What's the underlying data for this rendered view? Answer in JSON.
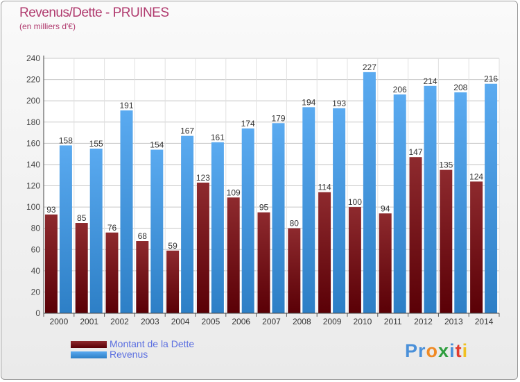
{
  "chart_data": {
    "type": "bar",
    "title": "Revenus/Dette - PRUINES",
    "subtitle": "(en milliers d'€)",
    "categories": [
      "2000",
      "2001",
      "2002",
      "2003",
      "2004",
      "2005",
      "2006",
      "2007",
      "2008",
      "2009",
      "2010",
      "2011",
      "2012",
      "2013",
      "2014"
    ],
    "series": [
      {
        "name": "Montant de la Dette",
        "color": "#7a0f14",
        "values": [
          93,
          85,
          76,
          68,
          59,
          123,
          109,
          95,
          80,
          114,
          100,
          94,
          147,
          135,
          124
        ]
      },
      {
        "name": "Revenus",
        "color": "#3f97e0",
        "values": [
          158,
          155,
          191,
          154,
          167,
          161,
          174,
          179,
          194,
          193,
          227,
          206,
          214,
          208,
          216
        ]
      }
    ],
    "ylim": [
      0,
      240
    ],
    "yticks": [
      0,
      20,
      40,
      60,
      80,
      100,
      120,
      140,
      160,
      180,
      200,
      220,
      240
    ],
    "grid": true,
    "legend_position": "bottom-left"
  },
  "branding": {
    "logo_letters": [
      "P",
      "r",
      "o",
      "x",
      "i",
      "t",
      "i"
    ],
    "logo_colors": [
      "#4a90d9",
      "#4a90d9",
      "#f08a24",
      "#2e9e3e",
      "#4a90d9",
      "#e23b2e",
      "#f0c020"
    ]
  }
}
